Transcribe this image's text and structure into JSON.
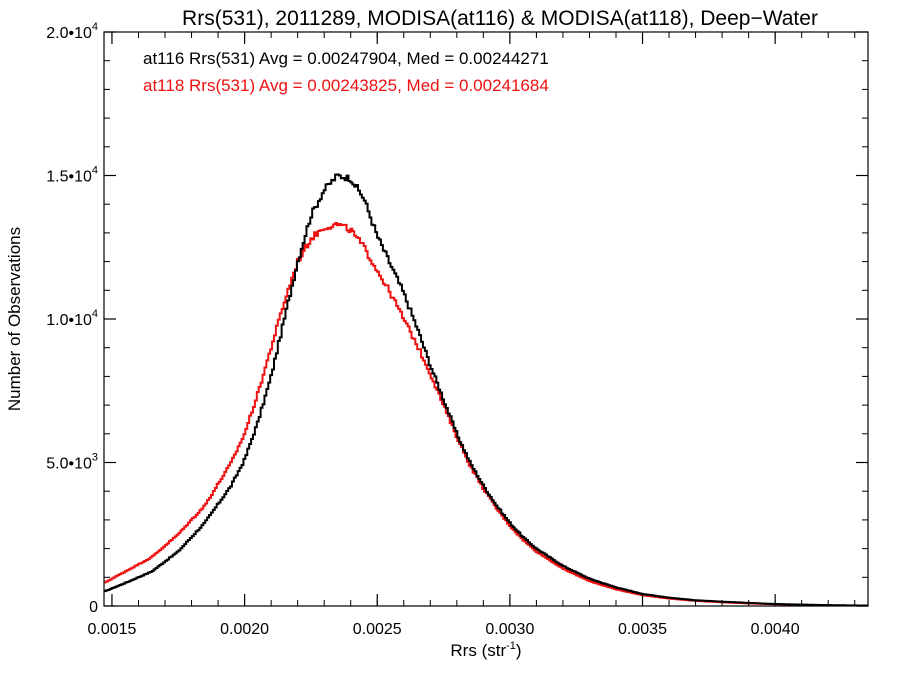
{
  "chart_data": {
    "type": "line",
    "title": "Rrs(531), 2011289, MODISA(at116) & MODISA(at118), Deep−Water",
    "xlabel": "Rrs (str",
    "xlabel_sup": "-1",
    "xlabel_suffix": ")",
    "ylabel": "Number of Observations",
    "xlim": [
      0.00147,
      0.00435
    ],
    "ylim": [
      0,
      20000
    ],
    "x_ticks": [
      {
        "value": 0.0015,
        "label": "0.0015"
      },
      {
        "value": 0.002,
        "label": "0.0020"
      },
      {
        "value": 0.0025,
        "label": "0.0025"
      },
      {
        "value": 0.003,
        "label": "0.0030"
      },
      {
        "value": 0.0035,
        "label": "0.0035"
      },
      {
        "value": 0.004,
        "label": "0.0040"
      }
    ],
    "y_ticks": [
      {
        "value": 0,
        "mantissa": "0",
        "exp": ""
      },
      {
        "value": 5000,
        "mantissa": "5.0•10",
        "exp": "3"
      },
      {
        "value": 10000,
        "mantissa": "1.0•10",
        "exp": "4"
      },
      {
        "value": 15000,
        "mantissa": "1.5•10",
        "exp": "4"
      },
      {
        "value": 20000,
        "mantissa": "2.0•10",
        "exp": "4"
      }
    ],
    "grid": false,
    "legend_position": "top-left",
    "annotations": [
      {
        "text": "at116 Rrs(531) Avg = 0.00247904, Med = 0.00244271",
        "color": "#000000"
      },
      {
        "text": "at118 Rrs(531) Avg = 0.00243825, Med = 0.00241684",
        "color": "#ee1111"
      }
    ],
    "series": [
      {
        "color": "#000000",
        "x": [
          0.00147,
          0.00155,
          0.00165,
          0.00175,
          0.00185,
          0.00195,
          0.002,
          0.00205,
          0.0021,
          0.00215,
          0.0022,
          0.00225,
          0.0023,
          0.00235,
          0.0024,
          0.00245,
          0.0025,
          0.00255,
          0.0026,
          0.00265,
          0.0027,
          0.00275,
          0.0028,
          0.00285,
          0.0029,
          0.00295,
          0.003,
          0.00305,
          0.0031,
          0.0032,
          0.0033,
          0.0034,
          0.0035,
          0.0036,
          0.0037,
          0.0038,
          0.0039,
          0.004,
          0.0041,
          0.0042,
          0.00435
        ],
        "values": [
          500,
          800,
          1200,
          1900,
          2900,
          4200,
          5100,
          6400,
          8000,
          10000,
          12000,
          13600,
          14500,
          15000,
          14900,
          14200,
          12900,
          11900,
          10900,
          9700,
          8400,
          7200,
          6000,
          5000,
          4200,
          3500,
          2900,
          2400,
          2000,
          1400,
          950,
          650,
          420,
          290,
          200,
          150,
          110,
          70,
          50,
          30,
          15
        ]
      },
      {
        "color": "#ee1111",
        "x": [
          0.00147,
          0.00155,
          0.00165,
          0.00175,
          0.00185,
          0.00195,
          0.002,
          0.00205,
          0.0021,
          0.00215,
          0.0022,
          0.00225,
          0.0023,
          0.00235,
          0.0024,
          0.00245,
          0.0025,
          0.00255,
          0.0026,
          0.00265,
          0.0027,
          0.00275,
          0.0028,
          0.00285,
          0.0029,
          0.00295,
          0.003,
          0.00305,
          0.0031,
          0.0032,
          0.0033,
          0.0034,
          0.0035,
          0.0036,
          0.0037,
          0.0038,
          0.0039,
          0.004,
          0.0041,
          0.0042,
          0.00435
        ],
        "values": [
          800,
          1200,
          1700,
          2500,
          3500,
          5000,
          6000,
          7400,
          9000,
          10600,
          12000,
          12800,
          13200,
          13300,
          13100,
          12500,
          11700,
          10900,
          10000,
          9100,
          8100,
          7000,
          5900,
          4900,
          4100,
          3400,
          2800,
          2300,
          1900,
          1300,
          870,
          580,
          380,
          260,
          180,
          130,
          90,
          60,
          40,
          25,
          12
        ]
      }
    ]
  }
}
